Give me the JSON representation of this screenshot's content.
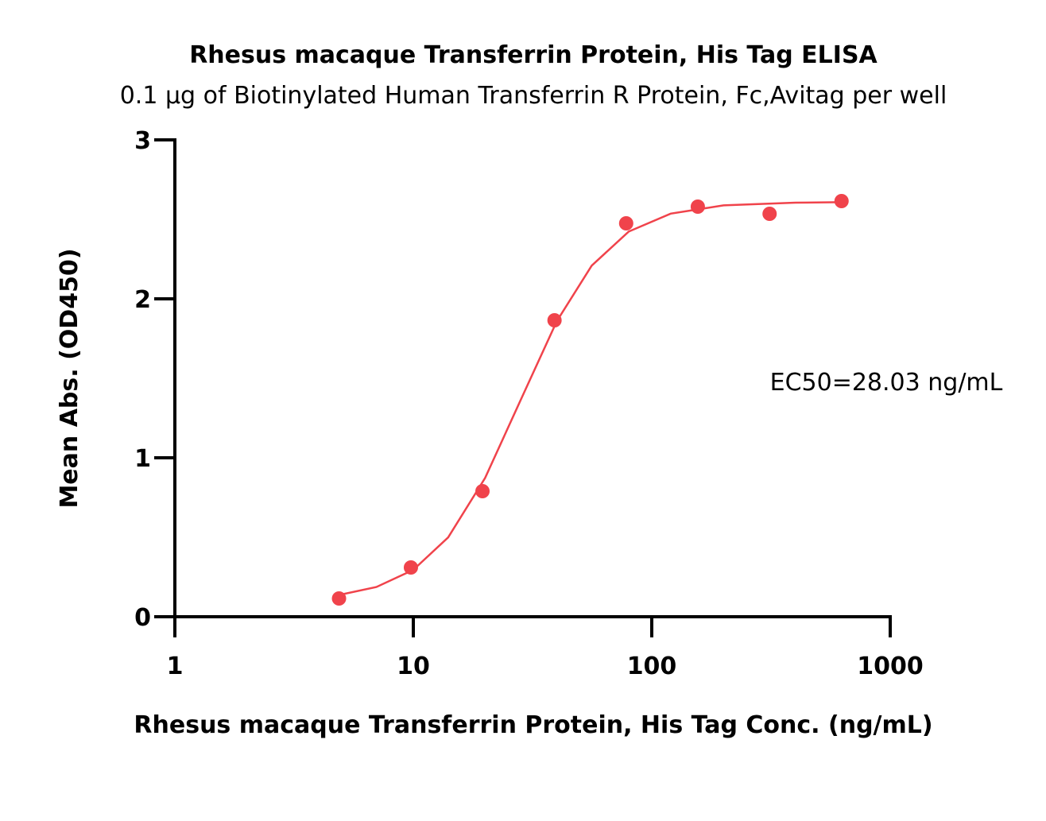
{
  "chart_data": {
    "type": "scatter",
    "title": "Rhesus macaque Transferrin Protein, His Tag ELISA",
    "subtitle": "0.1 µg of Biotinylated Human Transferrin R Protein, Fc,Avitag per well",
    "x_label": "Rhesus macaque Transferrin Protein, His Tag Conc. (ng/mL)",
    "y_label": "Mean Abs. (OD450)",
    "annotation": "EC50=28.03 ng/mL",
    "xscale": "log",
    "xlim": [
      1,
      1000
    ],
    "xticks": [
      1,
      10,
      100,
      1000
    ],
    "ylim": [
      0,
      3
    ],
    "yticks": [
      0,
      1,
      2,
      3
    ],
    "series": [
      {
        "type": "scatter",
        "color": "#f0434b",
        "x": [
          4.88,
          9.77,
          19.5,
          39.1,
          78.1,
          156,
          312,
          625
        ],
        "values": [
          0.115,
          0.31,
          0.79,
          1.865,
          2.475,
          2.58,
          2.535,
          2.615
        ]
      },
      {
        "type": "line",
        "color": "#f0434b",
        "x": [
          4.88,
          7,
          10,
          14,
          20,
          28.03,
          40,
          56,
          80,
          120,
          200,
          400,
          625
        ],
        "values": [
          0.137,
          0.187,
          0.295,
          0.499,
          0.873,
          1.355,
          1.86,
          2.209,
          2.423,
          2.536,
          2.588,
          2.605,
          2.608
        ]
      }
    ]
  }
}
